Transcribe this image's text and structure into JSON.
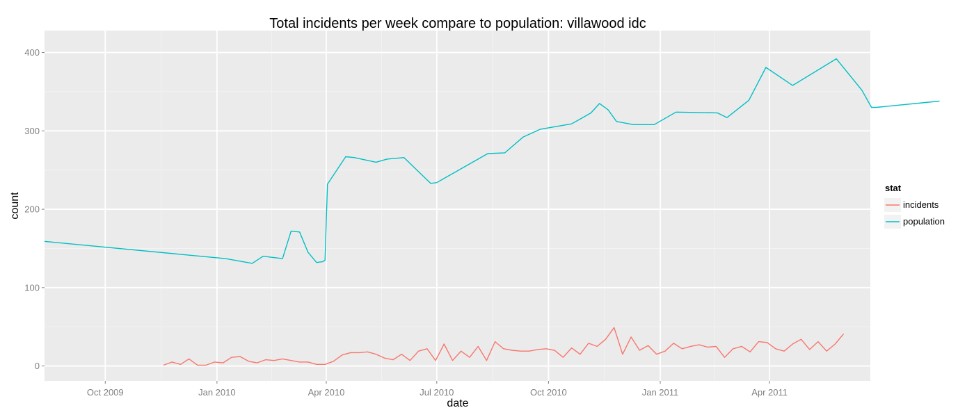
{
  "chart_data": {
    "type": "line",
    "title": "Total incidents per week compare to population: villawood idc",
    "xlabel": "date",
    "ylabel": "count",
    "xlim": [
      "2009-08-12",
      "2011-06-23"
    ],
    "ylim": [
      -19,
      428
    ],
    "x_ticks": [
      {
        "date": "2009-10-01",
        "label": "Oct 2009"
      },
      {
        "date": "2010-01-01",
        "label": "Jan 2010"
      },
      {
        "date": "2010-04-01",
        "label": "Apr 2010"
      },
      {
        "date": "2010-07-01",
        "label": "Jul 2010"
      },
      {
        "date": "2010-10-01",
        "label": "Oct 2010"
      },
      {
        "date": "2011-01-01",
        "label": "Jan 2011"
      },
      {
        "date": "2011-04-01",
        "label": "Apr 2011"
      }
    ],
    "y_ticks": [
      0,
      100,
      200,
      300,
      400
    ],
    "grid": true,
    "legend": {
      "title": "stat",
      "position": "right"
    },
    "series": [
      {
        "name": "incidents",
        "color": "#F8766D",
        "points": [
          [
            "2009-11-18",
            1
          ],
          [
            "2009-11-25",
            5
          ],
          [
            "2009-12-02",
            2
          ],
          [
            "2009-12-09",
            9
          ],
          [
            "2009-12-16",
            1
          ],
          [
            "2009-12-23",
            1
          ],
          [
            "2009-12-30",
            5
          ],
          [
            "2010-01-06",
            4
          ],
          [
            "2010-01-13",
            11
          ],
          [
            "2010-01-20",
            12
          ],
          [
            "2010-01-27",
            6
          ],
          [
            "2010-02-03",
            4
          ],
          [
            "2010-02-10",
            8
          ],
          [
            "2010-02-17",
            7
          ],
          [
            "2010-02-24",
            9
          ],
          [
            "2010-03-03",
            7
          ],
          [
            "2010-03-10",
            5
          ],
          [
            "2010-03-17",
            5
          ],
          [
            "2010-03-24",
            2
          ],
          [
            "2010-03-31",
            2
          ],
          [
            "2010-04-07",
            6
          ],
          [
            "2010-04-14",
            14
          ],
          [
            "2010-04-21",
            17
          ],
          [
            "2010-04-28",
            17
          ],
          [
            "2010-05-05",
            18
          ],
          [
            "2010-05-12",
            15
          ],
          [
            "2010-05-19",
            10
          ],
          [
            "2010-05-26",
            8
          ],
          [
            "2010-06-02",
            15
          ],
          [
            "2010-06-09",
            7
          ],
          [
            "2010-06-16",
            19
          ],
          [
            "2010-06-23",
            22
          ],
          [
            "2010-06-30",
            7
          ],
          [
            "2010-07-07",
            28
          ],
          [
            "2010-07-14",
            7
          ],
          [
            "2010-07-21",
            19
          ],
          [
            "2010-07-28",
            11
          ],
          [
            "2010-08-04",
            25
          ],
          [
            "2010-08-11",
            7
          ],
          [
            "2010-08-18",
            31
          ],
          [
            "2010-08-25",
            22
          ],
          [
            "2010-09-01",
            20
          ],
          [
            "2010-09-08",
            19
          ],
          [
            "2010-09-15",
            19
          ],
          [
            "2010-09-22",
            21
          ],
          [
            "2010-09-29",
            22
          ],
          [
            "2010-10-06",
            20
          ],
          [
            "2010-10-13",
            11
          ],
          [
            "2010-10-20",
            23
          ],
          [
            "2010-10-27",
            15
          ],
          [
            "2010-11-03",
            29
          ],
          [
            "2010-11-10",
            25
          ],
          [
            "2010-11-17",
            34
          ],
          [
            "2010-11-24",
            49
          ],
          [
            "2010-12-01",
            15
          ],
          [
            "2010-12-08",
            37
          ],
          [
            "2010-12-15",
            20
          ],
          [
            "2010-12-22",
            26
          ],
          [
            "2010-12-29",
            15
          ],
          [
            "2011-01-05",
            19
          ],
          [
            "2011-01-12",
            29
          ],
          [
            "2011-01-19",
            22
          ],
          [
            "2011-01-26",
            25
          ],
          [
            "2011-02-02",
            27
          ],
          [
            "2011-02-09",
            24
          ],
          [
            "2011-02-16",
            25
          ],
          [
            "2011-02-23",
            11
          ],
          [
            "2011-03-02",
            22
          ],
          [
            "2011-03-09",
            25
          ],
          [
            "2011-03-16",
            18
          ],
          [
            "2011-03-23",
            31
          ],
          [
            "2011-03-30",
            30
          ],
          [
            "2011-04-06",
            22
          ],
          [
            "2011-04-13",
            19
          ],
          [
            "2011-04-20",
            28
          ],
          [
            "2011-04-27",
            34
          ],
          [
            "2011-05-04",
            21
          ],
          [
            "2011-05-11",
            31
          ],
          [
            "2011-05-18",
            19
          ],
          [
            "2011-05-25",
            28
          ],
          [
            "2011-06-01",
            41
          ]
        ]
      },
      {
        "name": "population",
        "color": "#00BFC4",
        "points": [
          [
            "2009-08-12",
            159
          ],
          [
            "2010-01-08",
            137
          ],
          [
            "2010-01-30",
            131
          ],
          [
            "2010-02-08",
            140
          ],
          [
            "2010-02-24",
            137
          ],
          [
            "2010-03-03",
            172
          ],
          [
            "2010-03-10",
            171
          ],
          [
            "2010-03-17",
            145
          ],
          [
            "2010-03-24",
            132
          ],
          [
            "2010-03-29",
            133
          ],
          [
            "2010-03-31",
            135
          ],
          [
            "2010-04-02",
            232
          ],
          [
            "2010-04-17",
            267
          ],
          [
            "2010-04-24",
            266
          ],
          [
            "2010-05-12",
            260
          ],
          [
            "2010-05-21",
            264
          ],
          [
            "2010-06-04",
            266
          ],
          [
            "2010-06-26",
            233
          ],
          [
            "2010-07-01",
            234
          ],
          [
            "2010-08-12",
            271
          ],
          [
            "2010-08-26",
            272
          ],
          [
            "2010-09-10",
            292
          ],
          [
            "2010-09-24",
            302
          ],
          [
            "2010-10-20",
            309
          ],
          [
            "2010-10-27",
            315
          ],
          [
            "2010-11-05",
            323
          ],
          [
            "2010-11-12",
            335
          ],
          [
            "2010-11-19",
            327
          ],
          [
            "2010-11-26",
            312
          ],
          [
            "2010-12-10",
            308
          ],
          [
            "2010-12-27",
            308
          ],
          [
            "2011-01-14",
            324
          ],
          [
            "2011-02-17",
            323
          ],
          [
            "2011-02-25",
            317
          ],
          [
            "2011-03-15",
            339
          ],
          [
            "2011-03-29",
            381
          ],
          [
            "2011-04-20",
            358
          ],
          [
            "2011-05-26",
            392
          ],
          [
            "2011-06-16",
            352
          ],
          [
            "2011-06-24",
            330
          ],
          [
            "2011-06-28",
            330
          ],
          [
            "2011-08-19",
            338
          ]
        ]
      }
    ]
  }
}
